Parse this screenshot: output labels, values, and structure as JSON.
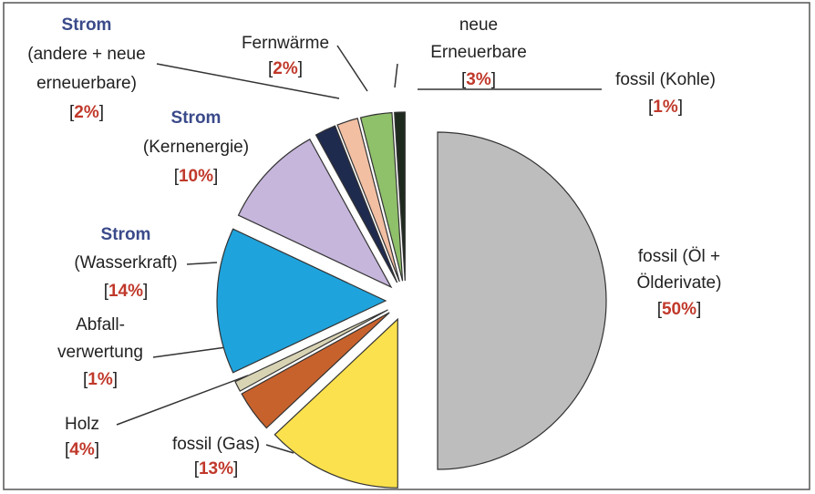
{
  "chart_data": {
    "type": "pie",
    "categories": [
      "fossil (Öl +\nÖlderivate)",
      "fossil (Gas)",
      "Holz",
      "Abfall-\nverwertung",
      "Strom\n(Wasserkraft)",
      "Strom\n(Kernenergie)",
      "Strom\n(andere + neue\nerneuerbare)",
      "Fernwärme",
      "neue\nErneuerbare",
      "fossil (Kohle)"
    ],
    "values": [
      50,
      13,
      4,
      1,
      14,
      10,
      2,
      2,
      3,
      1
    ],
    "value_labels": [
      "[50%]",
      "[13%]",
      "[4%]",
      "[1%]",
      "[14%]",
      "[10%]",
      "[2%]",
      "[2%]",
      "[3%]",
      "[1%]"
    ],
    "first_line_highlight": [
      false,
      false,
      false,
      false,
      true,
      true,
      true,
      false,
      false,
      false
    ],
    "colors": [
      "#bdbdbd",
      "#fbe14d",
      "#c8622c",
      "#d8d3b3",
      "#1fa3dc",
      "#c6b6dc",
      "#1f2a4f",
      "#f2bfa3",
      "#8fc06a",
      "#1f2a1f"
    ]
  }
}
